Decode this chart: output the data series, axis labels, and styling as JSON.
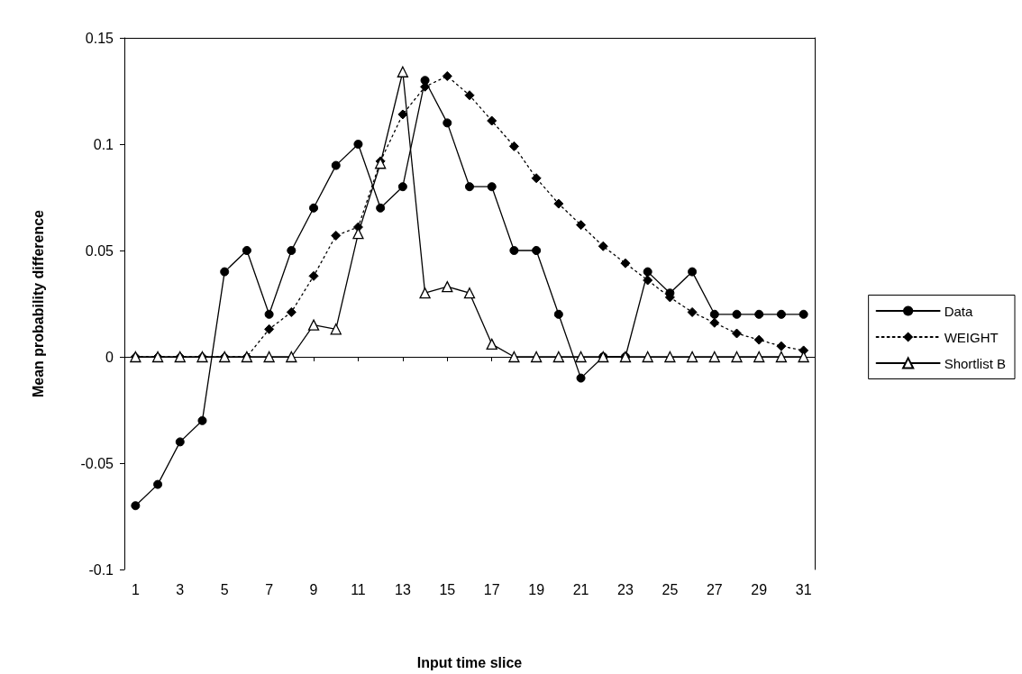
{
  "chart_data": {
    "type": "line",
    "xlabel": "Input time slice",
    "ylabel": "Mean probability difference",
    "x": [
      1,
      2,
      3,
      4,
      5,
      6,
      7,
      8,
      9,
      10,
      11,
      12,
      13,
      14,
      15,
      16,
      17,
      18,
      19,
      20,
      21,
      22,
      23,
      24,
      25,
      26,
      27,
      28,
      29,
      30,
      31
    ],
    "xlim": [
      0.5,
      31.5
    ],
    "xticks": [
      1,
      3,
      5,
      7,
      9,
      11,
      13,
      15,
      17,
      19,
      21,
      23,
      25,
      27,
      29,
      31
    ],
    "ylim": [
      -0.1,
      0.15
    ],
    "yticks": [
      -0.1,
      -0.05,
      0,
      0.05,
      0.1,
      0.15
    ],
    "legend": "right",
    "series": [
      {
        "name": "Data",
        "color": "#000000",
        "marker": "circle",
        "line_style": "solid",
        "values": [
          -0.07,
          -0.06,
          -0.04,
          -0.03,
          0.04,
          0.05,
          0.02,
          0.05,
          0.07,
          0.09,
          0.1,
          0.07,
          0.08,
          0.13,
          0.11,
          0.08,
          0.08,
          0.05,
          0.05,
          0.02,
          -0.01,
          0,
          0,
          0.04,
          0.03,
          0.04,
          0.02,
          0.02,
          0.02,
          0.02,
          0.02
        ]
      },
      {
        "name": "WEIGHT",
        "color": "#000000",
        "marker": "diamond",
        "line_style": "dotted",
        "values": [
          0,
          0,
          0,
          0,
          0,
          0,
          0.013,
          0.021,
          0.038,
          0.057,
          0.061,
          0.092,
          0.114,
          0.127,
          0.132,
          0.123,
          0.111,
          0.099,
          0.084,
          0.072,
          0.062,
          0.052,
          0.044,
          0.036,
          0.028,
          0.021,
          0.016,
          0.011,
          0.008,
          0.005,
          0.003
        ]
      },
      {
        "name": "Shortlist B",
        "color": "#000000",
        "marker": "triangle",
        "line_style": "solid",
        "values": [
          0,
          0,
          0,
          0,
          0,
          0,
          0,
          0,
          0.015,
          0.013,
          0.058,
          0.091,
          0.134,
          0.03,
          0.033,
          0.03,
          0.006,
          0,
          0,
          0,
          0,
          0,
          0,
          0,
          0,
          0,
          0,
          0,
          0,
          0,
          0
        ]
      }
    ]
  }
}
